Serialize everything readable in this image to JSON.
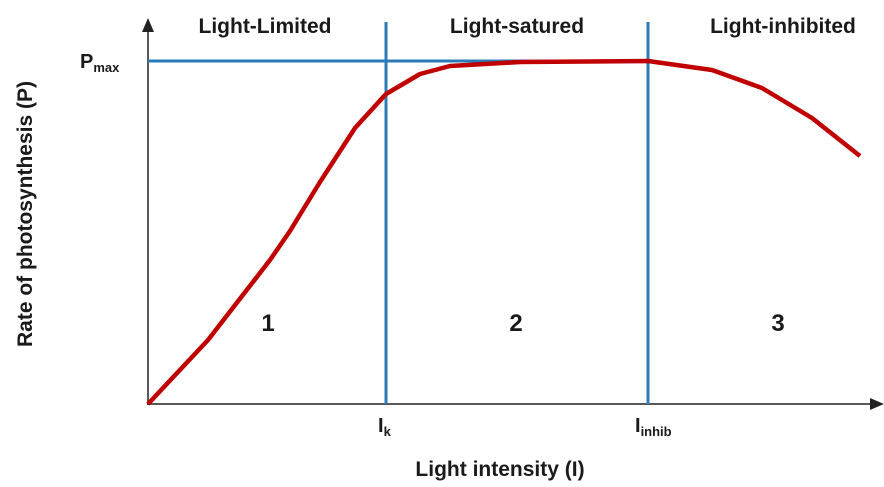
{
  "title_regions": [
    "Light-Limited",
    "Light-satured",
    "Light-inhibited"
  ],
  "region_numbers": [
    "1",
    "2",
    "3"
  ],
  "pmax": {
    "main": "P",
    "sub": "max"
  },
  "ik": {
    "main": "I",
    "sub": "k"
  },
  "iinhib": {
    "main": "I",
    "sub": "inhib"
  },
  "y_axis_label": "Rate of photosynthesis (P)",
  "x_axis_label": "Light intensity (I)"
}
